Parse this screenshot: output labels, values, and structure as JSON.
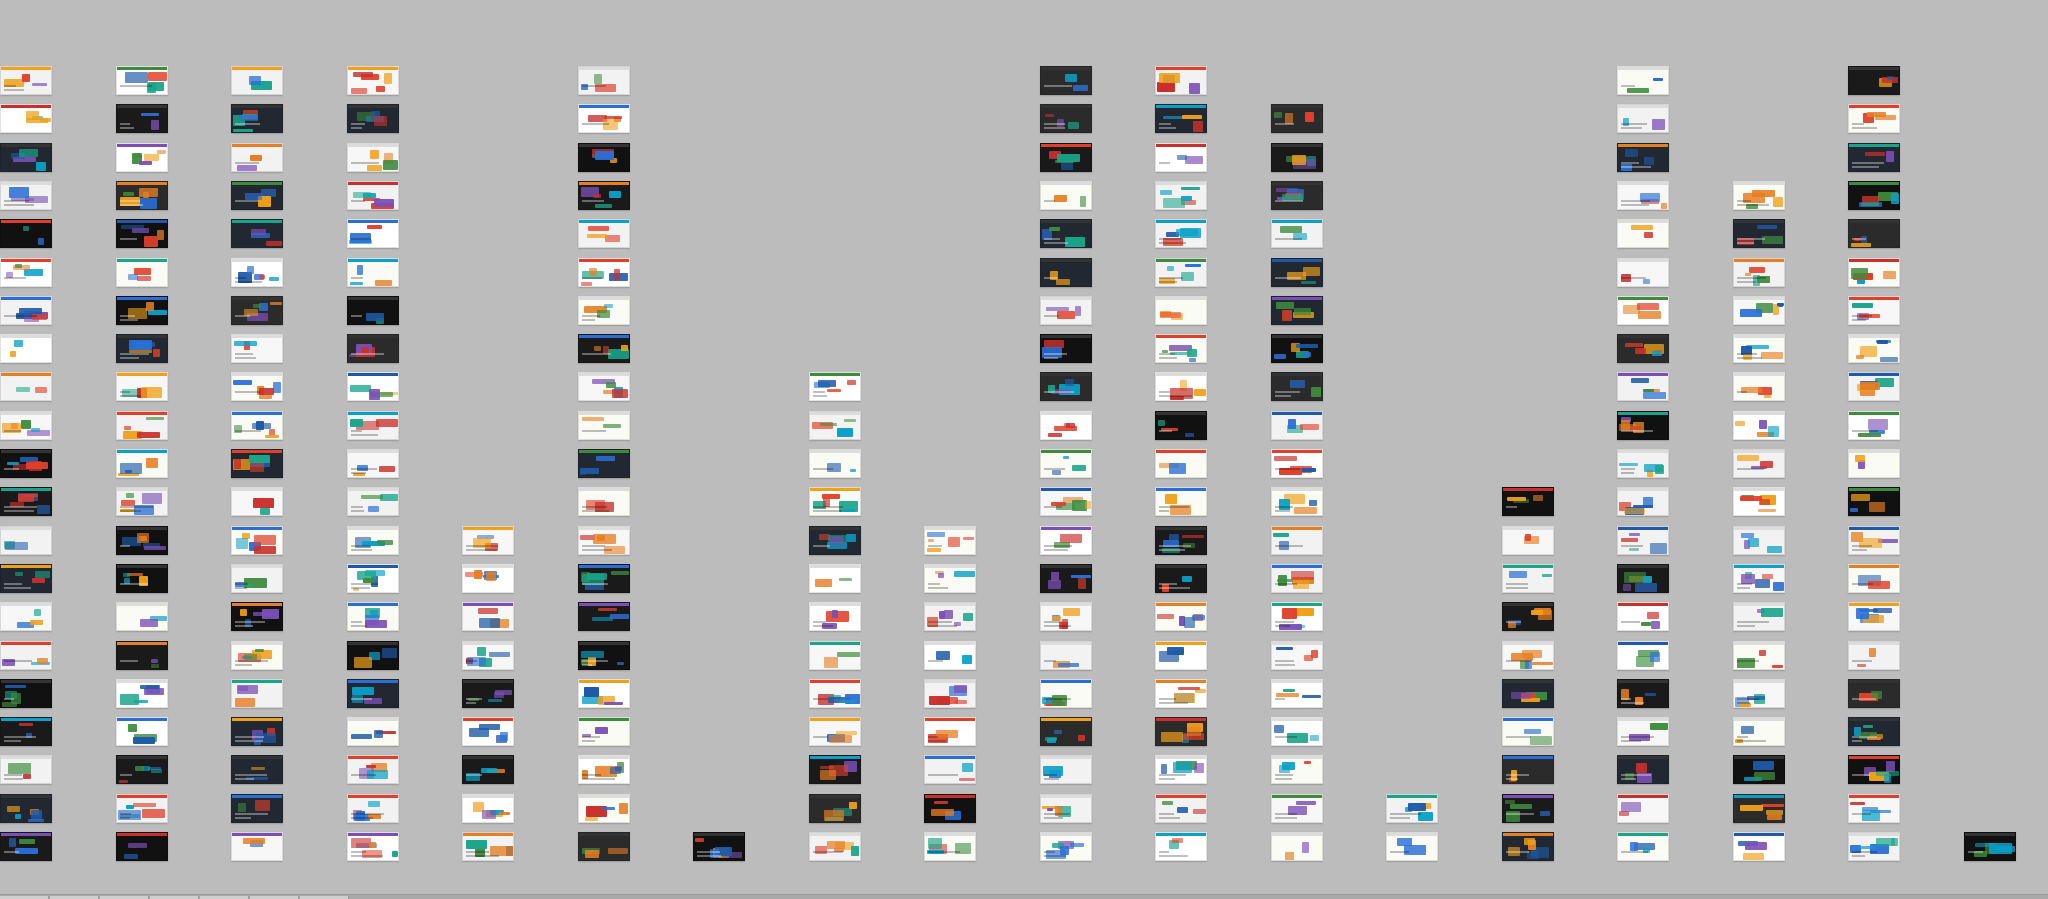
{
  "app": {
    "view": "thumbnail-wall",
    "background": "#bcbcbc"
  },
  "columns": [
    {
      "label": "",
      "count": 21,
      "start_row": 0
    },
    {
      "label": "",
      "count": 21,
      "start_row": 0
    },
    {
      "label": "",
      "count": 21,
      "start_row": 0
    },
    {
      "label": "",
      "count": 21,
      "start_row": 0
    },
    {
      "label": "",
      "count": 9,
      "start_row": 12
    },
    {
      "label": "",
      "count": 21,
      "start_row": 0
    },
    {
      "label": "",
      "count": 1,
      "start_row": 20
    },
    {
      "label": "",
      "count": 14,
      "start_row": 8
    },
    {
      "label": "",
      "count": 9,
      "start_row": 12
    },
    {
      "label": "",
      "count": 21,
      "start_row": 0
    },
    {
      "label": "",
      "count": 21,
      "start_row": 0
    },
    {
      "label": "",
      "count": 20,
      "start_row": 1
    },
    {
      "label": "",
      "count": 2,
      "start_row": 19
    },
    {
      "label": "",
      "count": 10,
      "start_row": 11
    },
    {
      "label": "",
      "count": 21,
      "start_row": 0
    },
    {
      "label": "",
      "count": 18,
      "start_row": 3
    },
    {
      "label": "",
      "count": 21,
      "start_row": 0
    },
    {
      "label": "",
      "count": 1,
      "start_row": 20
    }
  ],
  "palette": {
    "light": [
      "#ffffff",
      "#f7f7f7",
      "#f2f2f2",
      "#fbfbf5"
    ],
    "dark": [
      "#1a1a1a",
      "#222831",
      "#2b2b2b",
      "#111111"
    ],
    "accents": [
      "#e0402a",
      "#2a6fd6",
      "#f0a019",
      "#1aa58a",
      "#7b4fb5",
      "#c9302c",
      "#3d8b3d",
      "#1e5aa8",
      "#e67e22",
      "#0aa0c8"
    ]
  }
}
